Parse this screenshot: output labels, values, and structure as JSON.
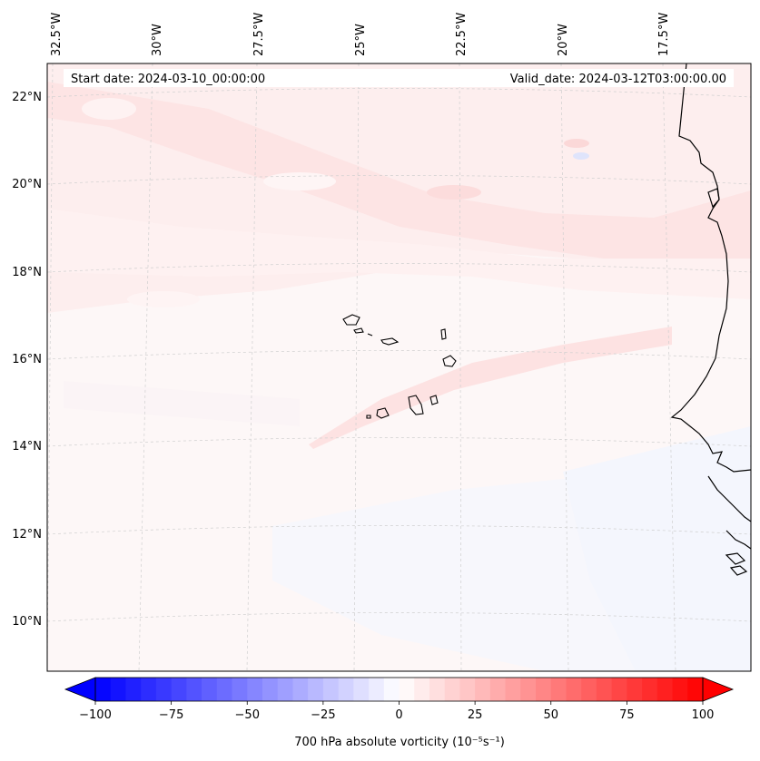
{
  "map": {
    "start_date_label": "Start date: 2024-03-10_00:00:00",
    "valid_date_label": "Valid_date: 2024-03-12T03:00:00.00",
    "lon_labels": [
      "32.5°W",
      "30°W",
      "27.5°W",
      "25°W",
      "22.5°W",
      "20°W",
      "17.5°W"
    ],
    "lat_labels": [
      "22°N",
      "20°N",
      "18°N",
      "16°N",
      "14°N",
      "12°N",
      "10°N"
    ],
    "field_colors": {
      "background": "#fdf6f6",
      "light_red": "#fde6e6",
      "lighter_red": "#fef0f0",
      "light_blue": "#f3f5fd",
      "coast": "#000000",
      "grid": "#c8c8c8"
    }
  },
  "colorbar": {
    "ticks": [
      "−100",
      "−75",
      "−50",
      "−25",
      "0",
      "25",
      "50",
      "75",
      "100"
    ],
    "label": "700 hPa absolute vorticity (10⁻⁵s⁻¹)",
    "colormap": "bwr",
    "range": [
      -100,
      100
    ],
    "levels": 40
  }
}
